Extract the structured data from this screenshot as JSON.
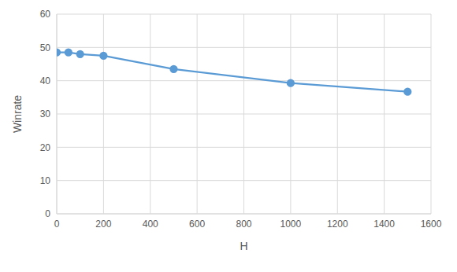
{
  "chart_data": {
    "type": "line",
    "x_label": "H",
    "y_label": "Winrate",
    "x": [
      0,
      50,
      100,
      200,
      500,
      1000,
      1500
    ],
    "values": [
      48.5,
      48.5,
      48,
      47.5,
      43.5,
      39.3,
      36.7
    ],
    "color": "#5b9bd5",
    "marker": "circle",
    "xlim": [
      0,
      1600
    ],
    "xticks": [
      0,
      200,
      400,
      600,
      800,
      1000,
      1200,
      1400,
      1600
    ],
    "ylim": [
      0,
      60
    ],
    "yticks": [
      0,
      10,
      20,
      30,
      40,
      50,
      60
    ],
    "grid": true
  }
}
